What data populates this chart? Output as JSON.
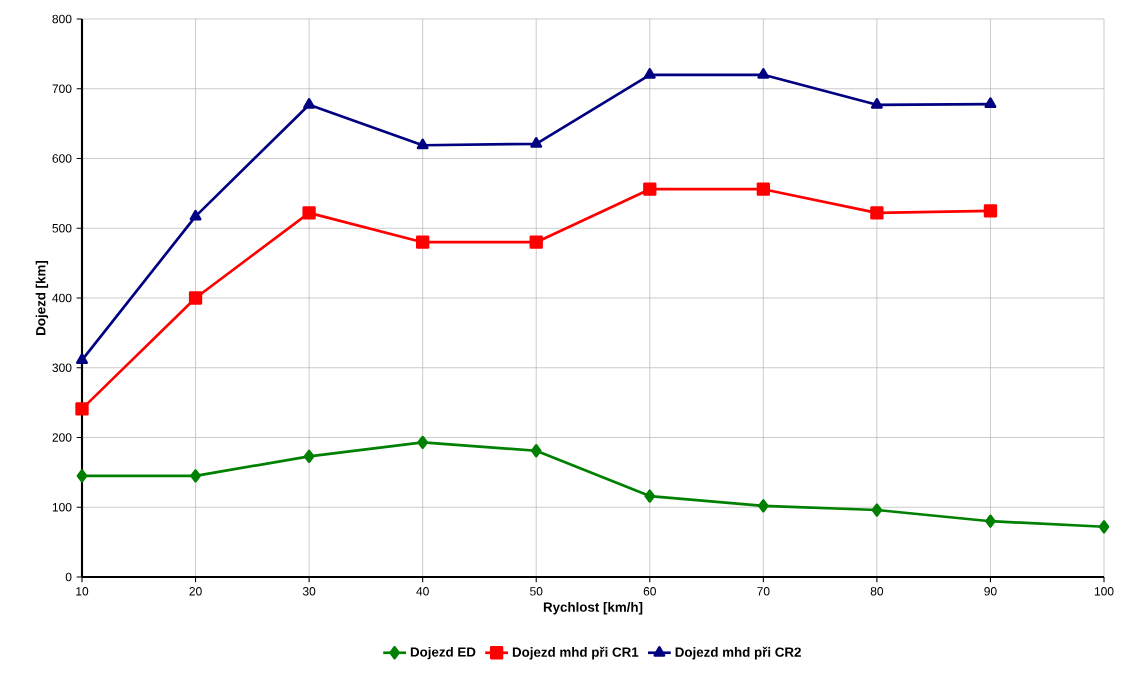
{
  "chart_data": {
    "type": "line",
    "xlabel": "Rychlost [km/h]",
    "ylabel": "Dojezd [km]",
    "xlim": [
      10,
      100
    ],
    "xticks": [
      10,
      20,
      30,
      40,
      50,
      60,
      70,
      80,
      90,
      100
    ],
    "ylim": [
      0,
      800
    ],
    "yticks": [
      0,
      100,
      200,
      300,
      400,
      500,
      600,
      700,
      800
    ],
    "grid": true,
    "legend": "bottom",
    "series": [
      {
        "name": "Dojezd ED",
        "color": "#008000",
        "marker": "diamond",
        "x": [
          10,
          20,
          30,
          40,
          50,
          60,
          70,
          80,
          90,
          100
        ],
        "values": [
          145,
          145,
          173,
          193,
          181,
          116,
          102,
          96,
          80,
          72
        ]
      },
      {
        "name": "Dojezd mhd při CR1",
        "color": "#ff0000",
        "marker": "square",
        "x": [
          10,
          20,
          30,
          40,
          50,
          60,
          70,
          80,
          90
        ],
        "values": [
          241,
          400,
          522,
          480,
          480,
          556,
          556,
          522,
          525
        ]
      },
      {
        "name": "Dojezd mhd při CR2",
        "color": "#000080",
        "marker": "triangle",
        "x": [
          10,
          20,
          30,
          40,
          50,
          60,
          70,
          80,
          90
        ],
        "values": [
          311,
          517,
          677,
          619,
          621,
          720,
          720,
          677,
          678
        ]
      }
    ]
  }
}
